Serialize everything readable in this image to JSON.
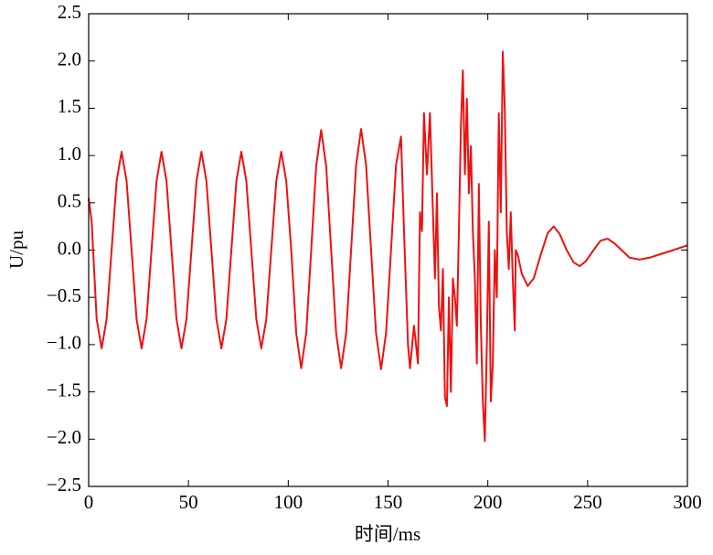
{
  "chart_data": {
    "type": "line",
    "xlabel": "时间/ms",
    "ylabel": "U/pu",
    "color": "#ee1111",
    "grid": false,
    "xlim": [
      0,
      300
    ],
    "xticks": [
      0,
      50,
      100,
      150,
      200,
      250,
      300
    ],
    "ylim": [
      -2.5,
      2.5
    ],
    "yticks": [
      {
        "value": -2.5,
        "label": "−2.5"
      },
      {
        "value": -2.0,
        "label": "−2.0"
      },
      {
        "value": -1.5,
        "label": "−1.5"
      },
      {
        "value": -1.0,
        "label": "−1.0"
      },
      {
        "value": -0.5,
        "label": "−0.5"
      },
      {
        "value": 0,
        "label": "0.0"
      },
      {
        "value": 0.5,
        "label": "0.5"
      },
      {
        "value": 1.0,
        "label": "1.0"
      },
      {
        "value": 1.5,
        "label": "1.5"
      },
      {
        "value": 2.0,
        "label": "2.0"
      },
      {
        "value": 2.5,
        "label": "2.5"
      }
    ],
    "x": [
      0,
      1.5,
      4,
      6.5,
      9,
      11.5,
      14,
      16.5,
      19,
      21.5,
      24,
      26.5,
      29,
      31.5,
      34,
      36.5,
      39,
      41.5,
      44,
      46.5,
      49,
      51.5,
      54,
      56.5,
      59,
      61.5,
      64,
      66.5,
      69,
      71.5,
      74,
      76.5,
      79,
      81.5,
      84,
      86.5,
      89,
      91.5,
      94,
      96.5,
      99,
      101.5,
      104,
      106.5,
      109,
      111.5,
      114,
      116.5,
      119,
      121.5,
      124,
      126.5,
      129,
      131.5,
      134,
      136.5,
      139,
      141.5,
      144,
      146.5,
      149,
      151.5,
      154,
      156.5,
      158,
      160,
      161,
      163,
      164,
      165,
      166,
      167,
      168,
      169.5,
      171,
      172.5,
      173.5,
      174.5,
      175.5,
      176.5,
      177.5,
      178.5,
      179.5,
      180.5,
      181.5,
      182.5,
      183.5,
      184.5,
      185.5,
      186.5,
      187.5,
      188.5,
      189.5,
      190.5,
      191.5,
      192.5,
      193.5,
      194.5,
      195.5,
      196.5,
      197.5,
      198.5,
      199.5,
      200.5,
      201.5,
      202.5,
      203.5,
      204.5,
      205.5,
      206.5,
      207.5,
      208.5,
      209.5,
      210.5,
      211.5,
      212.5,
      213.5,
      214,
      215,
      217,
      220,
      223,
      226.5,
      230,
      233,
      236,
      239.5,
      243,
      246,
      249,
      253,
      256.5,
      260,
      263.5,
      267,
      271,
      276,
      281,
      287,
      293,
      300
    ],
    "values": [
      0.55,
      0.3,
      -0.73,
      -1.04,
      -0.73,
      0,
      0.73,
      1.04,
      0.73,
      0,
      -0.73,
      -1.04,
      -0.73,
      0,
      0.73,
      1.04,
      0.73,
      0,
      -0.73,
      -1.04,
      -0.73,
      0,
      0.73,
      1.04,
      0.73,
      0,
      -0.73,
      -1.04,
      -0.73,
      0,
      0.73,
      1.04,
      0.73,
      0,
      -0.73,
      -1.04,
      -0.73,
      0,
      0.73,
      1.04,
      0.73,
      0,
      -0.88,
      -1.25,
      -0.88,
      0,
      0.89,
      1.27,
      0.89,
      0,
      -0.88,
      -1.25,
      -0.88,
      0,
      0.9,
      1.28,
      0.9,
      0,
      -0.88,
      -1.26,
      -0.88,
      0,
      0.9,
      1.2,
      0.2,
      -1.0,
      -1.25,
      -0.8,
      -1.0,
      -1.2,
      0.4,
      0.2,
      1.45,
      0.8,
      1.45,
      0.4,
      -0.3,
      0.6,
      -0.6,
      -0.85,
      -0.2,
      -1.55,
      -1.65,
      -0.5,
      -1.5,
      -0.3,
      -0.5,
      -0.8,
      0.2,
      1.3,
      1.9,
      0.8,
      1.6,
      0.6,
      1.1,
      0.2,
      -0.3,
      -1.2,
      0.7,
      -0.8,
      -1.6,
      -2.02,
      -1.0,
      0.3,
      -1.6,
      -1.2,
      0.0,
      -0.5,
      1.45,
      0.4,
      2.1,
      1.5,
      0.2,
      -0.2,
      0.4,
      -0.3,
      -0.85,
      0.0,
      -0.05,
      -0.25,
      -0.38,
      -0.3,
      -0.05,
      0.18,
      0.25,
      0.17,
      0,
      -0.13,
      -0.17,
      -0.12,
      0.0,
      0.1,
      0.12,
      0.07,
      0,
      -0.08,
      -0.1,
      -0.08,
      -0.04,
      0.0,
      0.05
    ]
  }
}
